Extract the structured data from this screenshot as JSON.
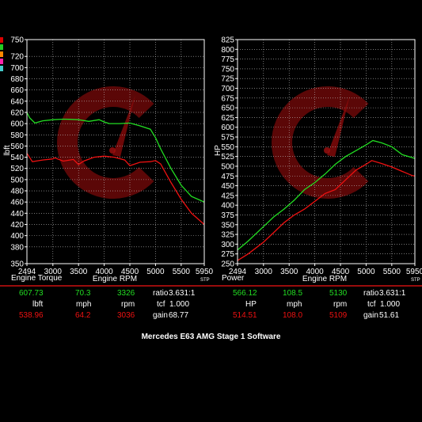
{
  "colors": {
    "run1": "#22dd22",
    "run2": "#ee1111",
    "background": "#000000",
    "separator": "#cc1111"
  },
  "legend_swatches": [
    "#dd0000",
    "#22cc22",
    "#ff8800",
    "#ff22aa",
    "#44cccc"
  ],
  "logo": "c-logo-icon",
  "footer_title": "Mercedes E63 AMG Stage 1 Software",
  "chart_data": [
    {
      "type": "line",
      "name": "torque",
      "ylabel": "lbft",
      "bottom_title": "Engine Torque",
      "xlabel": "Engine RPM",
      "corner_label": "STP",
      "xlim": [
        2494,
        5950
      ],
      "ylim": [
        350,
        750
      ],
      "x_ticks": [
        "2494",
        "3000",
        "3500",
        "4000",
        "4500",
        "5000",
        "5500",
        "5950"
      ],
      "y_ticks": [
        "350",
        "380",
        "400",
        "420",
        "440",
        "460",
        "480",
        "500",
        "520",
        "540",
        "560",
        "580",
        "600",
        "620",
        "640",
        "660",
        "680",
        "700",
        "720",
        "750"
      ],
      "series": [
        {
          "color": "#22dd22",
          "x": [
            2494,
            2550,
            2650,
            2800,
            3000,
            3200,
            3326,
            3500,
            3700,
            3900,
            4000,
            4100,
            4300,
            4500,
            4700,
            4900,
            5000,
            5100,
            5300,
            5500,
            5700,
            5950
          ],
          "y": [
            620,
            610,
            601,
            605,
            607,
            608,
            607.7,
            607,
            604,
            607,
            603,
            600,
            600,
            601,
            596,
            590,
            575,
            555,
            520,
            490,
            470,
            460
          ]
        },
        {
          "color": "#ee1111",
          "x": [
            2494,
            2600,
            2800,
            3000,
            3036,
            3200,
            3400,
            3500,
            3600,
            3800,
            4000,
            4200,
            4400,
            4500,
            4700,
            4900,
            5000,
            5100,
            5300,
            5500,
            5700,
            5950
          ],
          "y": [
            547,
            532,
            535,
            537,
            539,
            533,
            536,
            527,
            533,
            540,
            542,
            540,
            535,
            525,
            531,
            532,
            534,
            528,
            495,
            465,
            440,
            420
          ]
        }
      ]
    },
    {
      "type": "line",
      "name": "power",
      "ylabel": "HP",
      "bottom_title": "Power",
      "xlabel": "Engine RPM",
      "corner_label": "STP",
      "xlim": [
        2494,
        5950
      ],
      "ylim": [
        250,
        825
      ],
      "x_ticks": [
        "2494",
        "3000",
        "3500",
        "4000",
        "4500",
        "5000",
        "5500",
        "5950"
      ],
      "y_ticks": [
        "250",
        "275",
        "300",
        "325",
        "350",
        "375",
        "400",
        "425",
        "450",
        "475",
        "500",
        "525",
        "550",
        "575",
        "600",
        "625",
        "650",
        "675",
        "700",
        "725",
        "750",
        "775",
        "800",
        "825"
      ],
      "series": [
        {
          "color": "#22dd22",
          "x": [
            2494,
            2700,
            3000,
            3200,
            3400,
            3600,
            3800,
            4000,
            4200,
            4400,
            4600,
            4800,
            5000,
            5130,
            5300,
            5500,
            5700,
            5900,
            5950
          ],
          "y": [
            285,
            308,
            345,
            370,
            390,
            413,
            440,
            458,
            480,
            505,
            525,
            540,
            555,
            566,
            560,
            550,
            530,
            522,
            520
          ]
        },
        {
          "color": "#ee1111",
          "x": [
            2494,
            2700,
            3000,
            3200,
            3400,
            3600,
            3800,
            4000,
            4200,
            4400,
            4600,
            4800,
            5000,
            5109,
            5300,
            5500,
            5700,
            5900,
            5950
          ],
          "y": [
            258,
            275,
            305,
            330,
            355,
            375,
            390,
            410,
            430,
            440,
            465,
            490,
            505,
            514.5,
            507,
            498,
            487,
            476,
            475
          ]
        }
      ]
    }
  ],
  "readout": {
    "run1": {
      "torque": "607.73",
      "mph": "70.3",
      "rpm": "3326",
      "ratio_label": "ratio",
      "ratio": "3.631:1",
      "hp": "566.12",
      "hp_mph": "108.5",
      "hp_rpm": "5130",
      "hp_ratio_label": "ratio",
      "hp_ratio": "3.631:1"
    },
    "units": {
      "torque": "lbft",
      "mph": "mph",
      "rpm": "rpm",
      "tcf_label": "tcf",
      "tcf": "1.000",
      "hp": "HP",
      "hp_mph": "mph",
      "hp_rpm": "rpm",
      "hp_tcf_label": "tcf",
      "hp_tcf": "1.000"
    },
    "run2": {
      "torque": "538.96",
      "mph": "64.2",
      "rpm": "3036",
      "gain_label": "gain",
      "gain": "68.77",
      "hp": "514.51",
      "hp_mph": "108.0",
      "hp_rpm": "5109",
      "hp_gain_label": "gain",
      "hp_gain": "51.61"
    }
  }
}
